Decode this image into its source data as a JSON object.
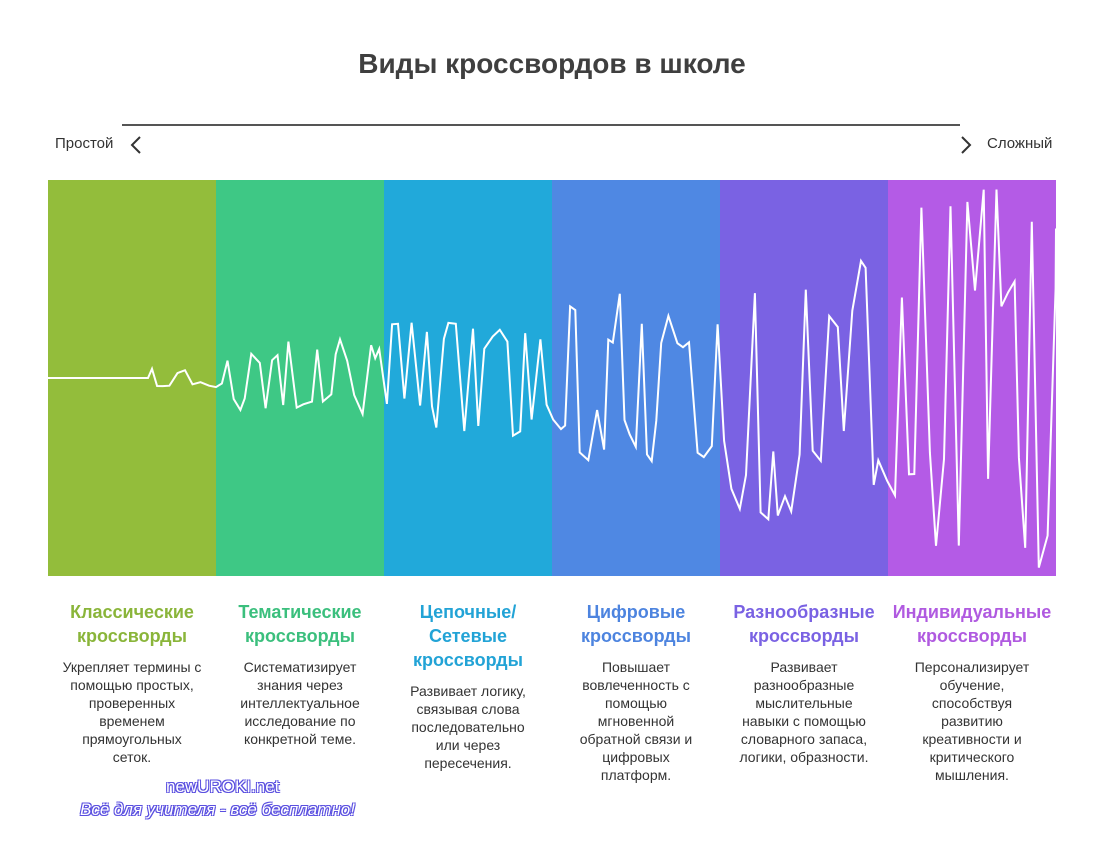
{
  "title": "Виды кроссвордов в школе",
  "scale": {
    "left_label": "Простой",
    "right_label": "Сложный"
  },
  "columns": [
    {
      "title": "Классические кроссворды",
      "desc": "Укрепляет термины с помощью простых, проверенных временем прямоугольных сеток.",
      "color": "#93bd3b",
      "text_color": "#8ab53a",
      "complexity": 0.05
    },
    {
      "title": "Тематические кроссворды",
      "desc": "Систематизирует знания через интеллектуальное исследование по конкретной теме.",
      "color": "#3ec885",
      "text_color": "#3bbf7d",
      "complexity": 0.2
    },
    {
      "title": "Цепочные/ Сетевые кроссворды",
      "desc": "Развивает логику, связывая слова последовательно или через пересечения.",
      "color": "#21a9da",
      "text_color": "#22a3d6",
      "complexity": 0.3
    },
    {
      "title": "Цифровые кроссворды",
      "desc": "Повышает вовлеченность с помощью мгновенной обратной связи и цифровых платформ.",
      "color": "#4f88e3",
      "text_color": "#4d84df",
      "complexity": 0.45
    },
    {
      "title": "Разнообразные кроссворды",
      "desc": "Развивает разнообразные мыслительные навыки с помощью словарного запаса, логики, образности.",
      "color": "#7a62e3",
      "text_color": "#7a62e3",
      "complexity": 0.75
    },
    {
      "title": "Индивидуальные кроссворды",
      "desc": "Персонализирует обучение, способствуя развитию креативности и критического мышления.",
      "color": "#b45be6",
      "text_color": "#b05ae0",
      "complexity": 1.0
    }
  ],
  "watermark": {
    "line1": "newUROKI.net",
    "line2": "Всё для учителя - всё бесплатно!"
  }
}
